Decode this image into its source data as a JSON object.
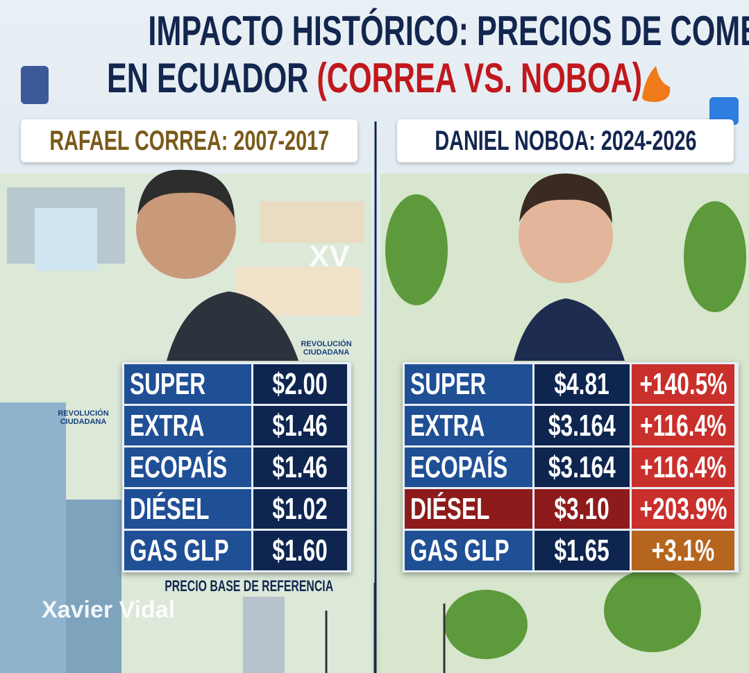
{
  "title": {
    "line1": "IMPACTO HISTÓRICO: PRECIOS DE COMBUSTIBLES",
    "line2": "EN ECUADOR",
    "highlight": "(CORREA VS. NOBOA)"
  },
  "left": {
    "heading": "RAFAEL CORREA: 2007-2017",
    "logo": "REVOLUCIÓN CIUDADANA",
    "table": {
      "rows": [
        [
          "SUPER",
          "$2.00"
        ],
        [
          "EXTRA",
          "$1.46"
        ],
        [
          "ECOPAÍS",
          "$1.46"
        ],
        [
          "DIÉSEL",
          "$1.02"
        ],
        [
          "GAS GLP",
          "$1.60"
        ]
      ]
    },
    "note": "PRECIO BASE DE REFERENCIA"
  },
  "right": {
    "heading": "DANIEL NOBOA: 2024-2026",
    "table": {
      "rows": [
        [
          "SUPER",
          "$4.81",
          "+140.5%"
        ],
        [
          "EXTRA",
          "$3.164",
          "+116.4%"
        ],
        [
          "ECOPAÍS",
          "$3.164",
          "+116.4%"
        ],
        [
          "DIÉSEL",
          "$3.10",
          "+203.9%"
        ],
        [
          "GAS GLP",
          "$1.65",
          "+3.1%"
        ]
      ]
    }
  },
  "watermarks": [
    "XV",
    "Xavier Vidal"
  ]
}
